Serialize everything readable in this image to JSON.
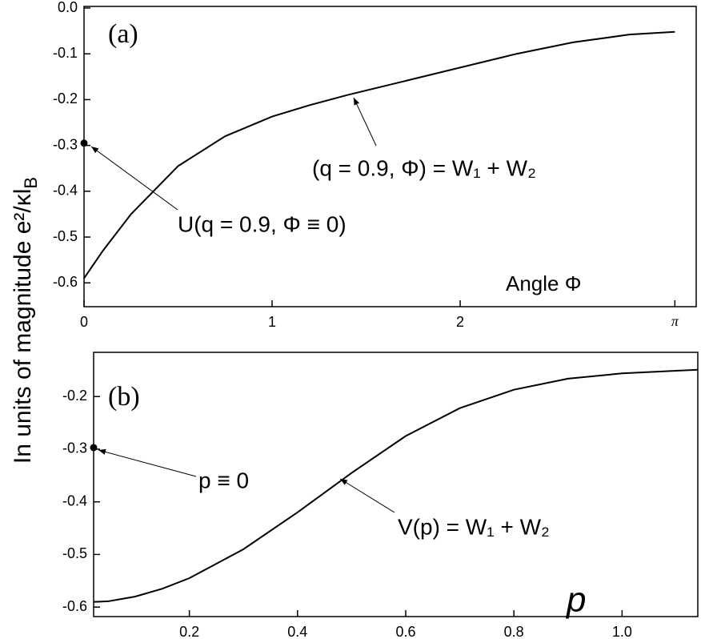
{
  "ylabel": "In units of magnitude  e²/κl",
  "ylabel_subscript": "B",
  "chart_data": [
    {
      "type": "line",
      "x": [
        0,
        0.1,
        0.25,
        0.5,
        0.75,
        1,
        1.2,
        1.4,
        1.7,
        2,
        2.3,
        2.6,
        2.9,
        3.14159
      ],
      "series": [
        {
          "color": "#000000",
          "values": [
            -0.59,
            -0.53,
            -0.45,
            -0.345,
            -0.28,
            -0.237,
            -0.212,
            -0.19,
            -0.16,
            -0.13,
            -0.1,
            -0.075,
            -0.058,
            -0.052
          ]
        }
      ],
      "marker": {
        "x": 0,
        "y": -0.295
      },
      "xlim": [
        0,
        3.255
      ],
      "ylim": [
        -0.652,
        0.0035
      ],
      "xticks": [
        0,
        1,
        2,
        {
          "value": 3.14159,
          "label": "π"
        }
      ],
      "yticks": [
        {
          "value": 0,
          "label": "0.0"
        },
        -0.1,
        -0.2,
        -0.3,
        -0.4,
        -0.5,
        -0.6
      ],
      "annotations": [
        "(a)",
        "(q = 0.9, Φ) = W₁ + W₂",
        "U(q = 0.9, Φ ≡ 0)",
        "Angle  Φ"
      ]
    },
    {
      "type": "line",
      "x": [
        0.023,
        0.05,
        0.1,
        0.15,
        0.2,
        0.3,
        0.4,
        0.5,
        0.6,
        0.7,
        0.8,
        0.9,
        1.0,
        1.1,
        1.14
      ],
      "series": [
        {
          "color": "#000000",
          "values": [
            -0.59,
            -0.589,
            -0.58,
            -0.565,
            -0.545,
            -0.49,
            -0.42,
            -0.345,
            -0.275,
            -0.222,
            -0.187,
            -0.166,
            -0.156,
            -0.151,
            -0.149
          ]
        }
      ],
      "marker": {
        "x": 0.023,
        "y": -0.297
      },
      "xlim": [
        0.023,
        1.14
      ],
      "ylim": [
        -0.618,
        -0.116
      ],
      "xticks": [
        0.2,
        0.4,
        0.6,
        0.8,
        {
          "value": 1,
          "label": "1.0"
        }
      ],
      "yticks": [
        -0.2,
        -0.3,
        -0.4,
        -0.5,
        -0.6
      ],
      "annotations": [
        "(b)",
        "p ≡ 0",
        "V(p) = W₁ + W₂",
        "p"
      ]
    }
  ]
}
